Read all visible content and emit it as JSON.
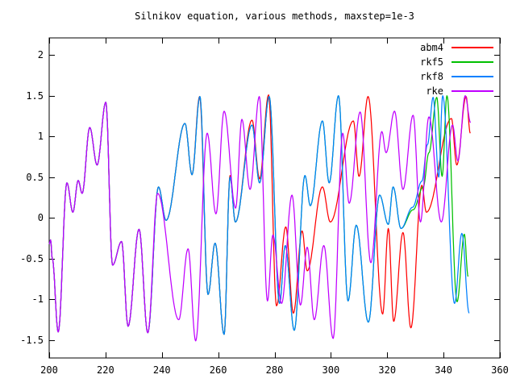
{
  "chart_data": {
    "type": "line",
    "title": "Silnikov equation, various methods, maxstep=1e-3",
    "xlabel": "",
    "ylabel": "",
    "xlim": [
      200,
      360
    ],
    "ylim": [
      -1.72,
      2.21
    ],
    "grid": false,
    "legend_position": "top-right-inside",
    "x_ticks": [
      200,
      220,
      240,
      260,
      280,
      300,
      320,
      340,
      360
    ],
    "x_tick_labels": [
      "200",
      "220",
      "240",
      "260",
      "280",
      "300",
      "320",
      "340",
      "360"
    ],
    "y_ticks": [
      2,
      1.5,
      1,
      0.5,
      0,
      -0.5,
      -1,
      -1.5
    ],
    "y_tick_labels": [
      "2",
      "1.5",
      "1",
      "0.5",
      "0",
      "-0.5",
      "-1",
      "-1.5"
    ],
    "axis_color": "#000000",
    "background_color": "#ffffff",
    "series": [
      {
        "name": "abm4",
        "color": "#ff0000",
        "points": [
          [
            200,
            -0.32
          ],
          [
            200.5,
            -0.27
          ],
          [
            201.1,
            -0.5
          ],
          [
            203.2,
            -1.4
          ],
          [
            206.3,
            0.43
          ],
          [
            208.4,
            0.07
          ],
          [
            210.3,
            0.46
          ],
          [
            211.7,
            0.3
          ],
          [
            214.4,
            1.11
          ],
          [
            217,
            0.65
          ],
          [
            220.1,
            1.42
          ],
          [
            222.5,
            -0.58
          ],
          [
            225.7,
            -0.29
          ],
          [
            228,
            -1.33
          ],
          [
            231.9,
            -0.14
          ],
          [
            235,
            -1.41
          ],
          [
            238.8,
            0.38
          ],
          [
            241.5,
            -0.03
          ],
          [
            248.2,
            1.16
          ],
          [
            250.7,
            0.53
          ],
          [
            253.4,
            1.49
          ],
          [
            256.4,
            -0.94
          ],
          [
            258.9,
            -0.31
          ],
          [
            262.1,
            -1.43
          ],
          [
            264.2,
            0.52
          ],
          [
            266.1,
            -0.05
          ],
          [
            272,
            1.2
          ],
          [
            274.7,
            0.48
          ],
          [
            277.9,
            1.51
          ],
          [
            280.7,
            -1.08
          ],
          [
            284,
            -0.11
          ],
          [
            286.7,
            -1.17
          ],
          [
            289.8,
            -0.16
          ],
          [
            291.6,
            -0.65
          ],
          [
            297,
            0.38
          ],
          [
            299.8,
            -0.05
          ],
          [
            308,
            1.19
          ],
          [
            310,
            0.51
          ],
          [
            313.2,
            1.49
          ],
          [
            318.4,
            -1.18
          ],
          [
            320.4,
            -0.13
          ],
          [
            322.3,
            -1.27
          ],
          [
            325.6,
            -0.18
          ],
          [
            328.4,
            -1.35
          ],
          [
            332.3,
            0.4
          ],
          [
            333.9,
            0.07
          ],
          [
            342.8,
            1.22
          ],
          [
            344.7,
            0.65
          ],
          [
            348,
            1.49
          ],
          [
            349.5,
            1.04
          ]
        ]
      },
      {
        "name": "rkf5",
        "color": "#00c000",
        "points": [
          [
            200,
            -0.32
          ],
          [
            200.5,
            -0.27
          ],
          [
            201.1,
            -0.5
          ],
          [
            203.2,
            -1.4
          ],
          [
            206.3,
            0.43
          ],
          [
            208.4,
            0.07
          ],
          [
            210.3,
            0.46
          ],
          [
            211.7,
            0.3
          ],
          [
            214.4,
            1.11
          ],
          [
            217,
            0.65
          ],
          [
            220.1,
            1.42
          ],
          [
            222.5,
            -0.58
          ],
          [
            225.7,
            -0.29
          ],
          [
            228,
            -1.33
          ],
          [
            231.9,
            -0.14
          ],
          [
            235,
            -1.41
          ],
          [
            238.8,
            0.38
          ],
          [
            241.5,
            -0.03
          ],
          [
            248.2,
            1.16
          ],
          [
            250.7,
            0.53
          ],
          [
            253.5,
            1.49
          ],
          [
            256.4,
            -0.94
          ],
          [
            258.9,
            -0.31
          ],
          [
            262.1,
            -1.43
          ],
          [
            264.2,
            0.5
          ],
          [
            266.1,
            -0.05
          ],
          [
            272,
            1.14
          ],
          [
            274.7,
            0.43
          ],
          [
            278.1,
            1.49
          ],
          [
            281.8,
            -1.05
          ],
          [
            283.8,
            -0.34
          ],
          [
            287,
            -1.38
          ],
          [
            290.8,
            0.52
          ],
          [
            292.7,
            0.15
          ],
          [
            297,
            1.19
          ],
          [
            299.4,
            0.43
          ],
          [
            302.7,
            1.5
          ],
          [
            306.1,
            -1.02
          ],
          [
            309,
            -0.09
          ],
          [
            313.3,
            -1.28
          ],
          [
            317.3,
            0.28
          ],
          [
            320.4,
            -0.08
          ],
          [
            322.1,
            0.38
          ],
          [
            324.9,
            -0.13
          ],
          [
            329.2,
            0.1
          ],
          [
            332.8,
            0.38
          ],
          [
            334.8,
            0.8
          ],
          [
            337.6,
            1.48
          ],
          [
            339.5,
            0.51
          ],
          [
            341.2,
            1.5
          ],
          [
            344.8,
            -1.03
          ],
          [
            347.4,
            -0.2
          ],
          [
            348.7,
            -0.72
          ]
        ]
      },
      {
        "name": "rkf8",
        "color": "#0080ff",
        "points": [
          [
            200,
            -0.32
          ],
          [
            200.5,
            -0.27
          ],
          [
            201.1,
            -0.5
          ],
          [
            203.2,
            -1.4
          ],
          [
            206.3,
            0.43
          ],
          [
            208.4,
            0.07
          ],
          [
            210.3,
            0.46
          ],
          [
            211.7,
            0.3
          ],
          [
            214.4,
            1.11
          ],
          [
            217,
            0.65
          ],
          [
            220.1,
            1.42
          ],
          [
            222.5,
            -0.58
          ],
          [
            225.7,
            -0.29
          ],
          [
            228,
            -1.33
          ],
          [
            231.9,
            -0.14
          ],
          [
            235,
            -1.41
          ],
          [
            238.8,
            0.38
          ],
          [
            241.5,
            -0.03
          ],
          [
            248.2,
            1.16
          ],
          [
            250.7,
            0.53
          ],
          [
            253.5,
            1.49
          ],
          [
            256.4,
            -0.94
          ],
          [
            258.9,
            -0.31
          ],
          [
            262.1,
            -1.43
          ],
          [
            264.2,
            0.5
          ],
          [
            266.1,
            -0.05
          ],
          [
            272,
            1.14
          ],
          [
            274.7,
            0.43
          ],
          [
            278.1,
            1.49
          ],
          [
            281.8,
            -1.05
          ],
          [
            283.8,
            -0.34
          ],
          [
            287,
            -1.38
          ],
          [
            290.8,
            0.52
          ],
          [
            292.7,
            0.15
          ],
          [
            297,
            1.19
          ],
          [
            299.4,
            0.43
          ],
          [
            302.7,
            1.5
          ],
          [
            306.1,
            -1.02
          ],
          [
            309,
            -0.09
          ],
          [
            313.3,
            -1.28
          ],
          [
            317.3,
            0.28
          ],
          [
            320.4,
            -0.08
          ],
          [
            322.1,
            0.38
          ],
          [
            324.9,
            -0.13
          ],
          [
            329,
            0.13
          ],
          [
            332.3,
            0.45
          ],
          [
            334.3,
            0.9
          ],
          [
            336.3,
            1.48
          ],
          [
            338.3,
            0.5
          ],
          [
            339.7,
            1.5
          ],
          [
            343.9,
            -1.05
          ],
          [
            346.5,
            -0.19
          ],
          [
            349.1,
            -1.17
          ]
        ]
      },
      {
        "name": "rke",
        "color": "#c000ff",
        "points": [
          [
            200,
            -0.32
          ],
          [
            200.5,
            -0.27
          ],
          [
            201.1,
            -0.5
          ],
          [
            203.2,
            -1.4
          ],
          [
            206.3,
            0.43
          ],
          [
            208.4,
            0.07
          ],
          [
            210.3,
            0.46
          ],
          [
            211.7,
            0.3
          ],
          [
            214.4,
            1.11
          ],
          [
            217,
            0.65
          ],
          [
            220.1,
            1.42
          ],
          [
            222.5,
            -0.58
          ],
          [
            225.7,
            -0.29
          ],
          [
            228,
            -1.33
          ],
          [
            231.9,
            -0.14
          ],
          [
            235,
            -1.41
          ],
          [
            238.5,
            0.3
          ],
          [
            246,
            -1.25
          ],
          [
            249.3,
            -0.38
          ],
          [
            252,
            -1.51
          ],
          [
            256.1,
            1.04
          ],
          [
            259.2,
            0.05
          ],
          [
            262.1,
            1.31
          ],
          [
            266.2,
            0.12
          ],
          [
            268.4,
            1.21
          ],
          [
            271.3,
            0.35
          ],
          [
            274.6,
            1.49
          ],
          [
            277.5,
            -1.02
          ],
          [
            279.4,
            -0.21
          ],
          [
            282.5,
            -1.05
          ],
          [
            286.2,
            0.28
          ],
          [
            289.2,
            -1.07
          ],
          [
            291.6,
            -0.36
          ],
          [
            294.1,
            -1.25
          ],
          [
            297.5,
            -0.34
          ],
          [
            300.8,
            -1.48
          ],
          [
            304.2,
            1.04
          ],
          [
            306.5,
            0.18
          ],
          [
            310.4,
            1.3
          ],
          [
            314.2,
            -0.55
          ],
          [
            318.1,
            1.06
          ],
          [
            319.6,
            0.8
          ],
          [
            322.6,
            1.31
          ],
          [
            325.6,
            0.35
          ],
          [
            329.2,
            1.26
          ],
          [
            331.8,
            -0.05
          ],
          [
            334.8,
            1.24
          ],
          [
            339.2,
            -0.05
          ],
          [
            343.2,
            1.14
          ],
          [
            345.1,
            0.7
          ],
          [
            347.7,
            1.5
          ],
          [
            349.6,
            1.17
          ]
        ]
      }
    ]
  }
}
